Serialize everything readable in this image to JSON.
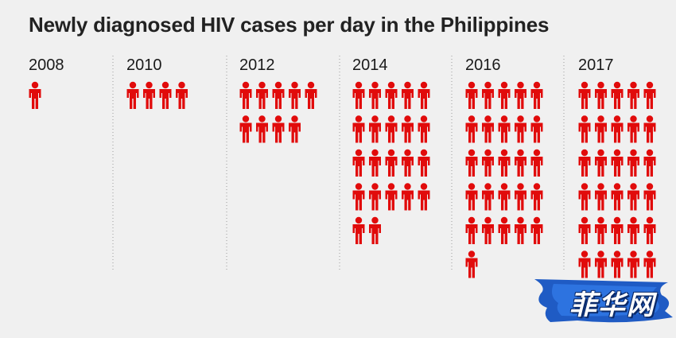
{
  "chart_data": {
    "type": "pictogram",
    "title": "Newly diagnosed HIV cases per day in the Philippines",
    "unit": "person icons",
    "categories": [
      "2008",
      "2010",
      "2012",
      "2014",
      "2016",
      "2017"
    ],
    "values": [
      1,
      4,
      9,
      22,
      26,
      30
    ],
    "columns_per_row": 5,
    "color": "#e10b0b"
  },
  "logo": {
    "text": "菲华网"
  }
}
